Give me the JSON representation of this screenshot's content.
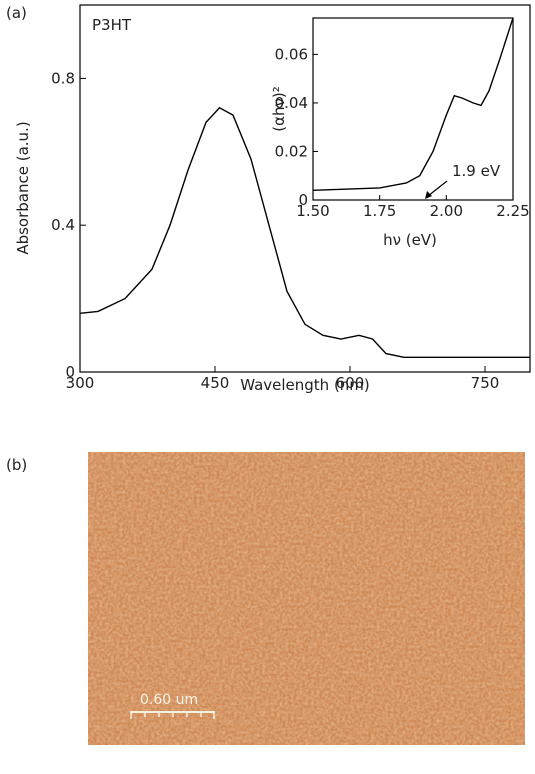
{
  "panel_labels": [
    "(a)",
    "(b)"
  ],
  "chart_data": [
    {
      "type": "line",
      "annotation": "P3HT",
      "x_label": "Wavelength (nm)",
      "y_label": "Absorbance (a.u.)",
      "xlim": [
        300,
        800
      ],
      "ylim": [
        0,
        1.0
      ],
      "xticks": [
        300,
        450,
        600,
        750
      ],
      "yticks": [
        0,
        0.4,
        0.8
      ],
      "series": [
        {
          "color": "#000000",
          "x": [
            300,
            320,
            350,
            380,
            400,
            420,
            440,
            455,
            470,
            490,
            510,
            530,
            550,
            570,
            590,
            610,
            625,
            640,
            660,
            700,
            800
          ],
          "values": [
            0.16,
            0.165,
            0.2,
            0.28,
            0.4,
            0.55,
            0.68,
            0.72,
            0.7,
            0.58,
            0.4,
            0.22,
            0.13,
            0.1,
            0.09,
            0.1,
            0.09,
            0.05,
            0.04,
            0.04,
            0.04
          ]
        }
      ]
    },
    {
      "type": "line",
      "annotation": "1.9 eV",
      "x_label": "hν (eV)",
      "y_label": "(αhν)²",
      "xlim": [
        1.5,
        2.25
      ],
      "ylim": [
        0,
        0.075
      ],
      "xticks": [
        {
          "value": 1.5,
          "label": "1.50"
        },
        {
          "value": 1.75,
          "label": "1.75"
        },
        {
          "value": 2.0,
          "label": "2.00"
        },
        {
          "value": 2.25,
          "label": "2.25"
        }
      ],
      "yticks": [
        0,
        0.02,
        0.04,
        0.06
      ],
      "series": [
        {
          "color": "#000000",
          "x": [
            1.5,
            1.75,
            1.85,
            1.9,
            1.95,
            2.0,
            2.03,
            2.06,
            2.1,
            2.13,
            2.16,
            2.2,
            2.25
          ],
          "values": [
            0.004,
            0.005,
            0.007,
            0.01,
            0.02,
            0.035,
            0.043,
            0.042,
            0.04,
            0.039,
            0.045,
            0.058,
            0.075
          ]
        }
      ]
    }
  ],
  "afm_image": {
    "scale_bar": "0.60 um"
  }
}
